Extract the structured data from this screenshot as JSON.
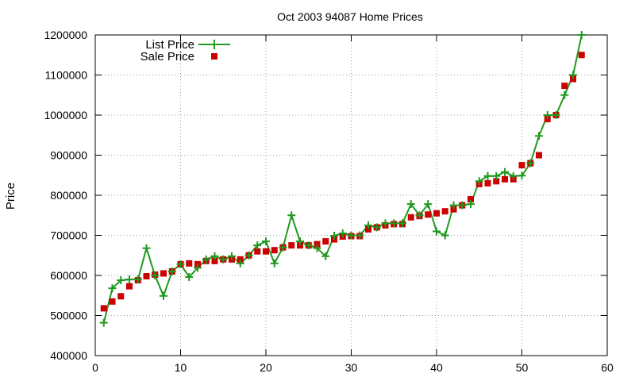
{
  "chart_data": {
    "type": "scatter",
    "title": "Oct 2003 94087 Home Prices",
    "xlabel": "",
    "ylabel": "Price",
    "xlim": [
      0,
      60
    ],
    "ylim": [
      400000,
      1200000
    ],
    "x_ticks": [
      "0",
      "10",
      "20",
      "30",
      "40",
      "50",
      "60"
    ],
    "y_ticks": [
      "400000",
      "500000",
      "600000",
      "700000",
      "800000",
      "900000",
      "1000000",
      "1100000",
      "1200000"
    ],
    "grid": true,
    "legend_position": "top-left",
    "series": [
      {
        "name": "List Price",
        "style": "line+plus",
        "color": "#1f9a1f",
        "x": [
          1,
          2,
          3,
          4,
          5,
          6,
          7,
          8,
          9,
          10,
          11,
          12,
          13,
          14,
          15,
          16,
          17,
          18,
          19,
          20,
          21,
          22,
          23,
          24,
          25,
          26,
          27,
          28,
          29,
          30,
          31,
          32,
          33,
          34,
          35,
          36,
          37,
          38,
          39,
          40,
          41,
          42,
          43,
          44,
          45,
          46,
          47,
          48,
          49,
          50,
          51,
          52,
          53,
          54,
          55,
          56,
          57
        ],
        "y": [
          482000,
          568000,
          588000,
          590000,
          590000,
          668000,
          600000,
          549000,
          610000,
          628000,
          596000,
          619000,
          640000,
          648000,
          640000,
          648000,
          630000,
          650000,
          675000,
          685000,
          630000,
          670000,
          750000,
          685000,
          675000,
          668000,
          648000,
          699000,
          705000,
          700000,
          700000,
          725000,
          720000,
          730000,
          730000,
          730000,
          778000,
          750000,
          778000,
          710000,
          700000,
          775000,
          775000,
          778000,
          835000,
          848000,
          848000,
          858000,
          848000,
          849000,
          880000,
          948000,
          1000000,
          1000000,
          1050000,
          1100000,
          1200000
        ]
      },
      {
        "name": "Sale Price",
        "style": "square",
        "color": "#cc0000",
        "x": [
          1,
          2,
          3,
          4,
          5,
          6,
          7,
          8,
          9,
          10,
          11,
          12,
          13,
          14,
          15,
          16,
          17,
          18,
          19,
          20,
          21,
          22,
          23,
          24,
          25,
          26,
          27,
          28,
          29,
          30,
          31,
          32,
          33,
          34,
          35,
          36,
          37,
          38,
          39,
          40,
          41,
          42,
          43,
          44,
          45,
          46,
          47,
          48,
          49,
          50,
          51,
          52,
          53,
          54,
          55,
          56,
          57
        ],
        "y": [
          518000,
          535000,
          548000,
          573000,
          588000,
          598000,
          602000,
          605000,
          610000,
          628000,
          630000,
          628000,
          636000,
          636000,
          640000,
          640000,
          640000,
          650000,
          660000,
          660000,
          663000,
          670000,
          675000,
          675000,
          675000,
          678000,
          685000,
          690000,
          697000,
          698000,
          698000,
          715000,
          720000,
          725000,
          728000,
          728000,
          745000,
          748000,
          752000,
          755000,
          760000,
          765000,
          775000,
          790000,
          828000,
          830000,
          835000,
          840000,
          840000,
          875000,
          880000,
          900000,
          990000,
          1000000,
          1073000,
          1090000,
          1150000
        ]
      }
    ]
  }
}
